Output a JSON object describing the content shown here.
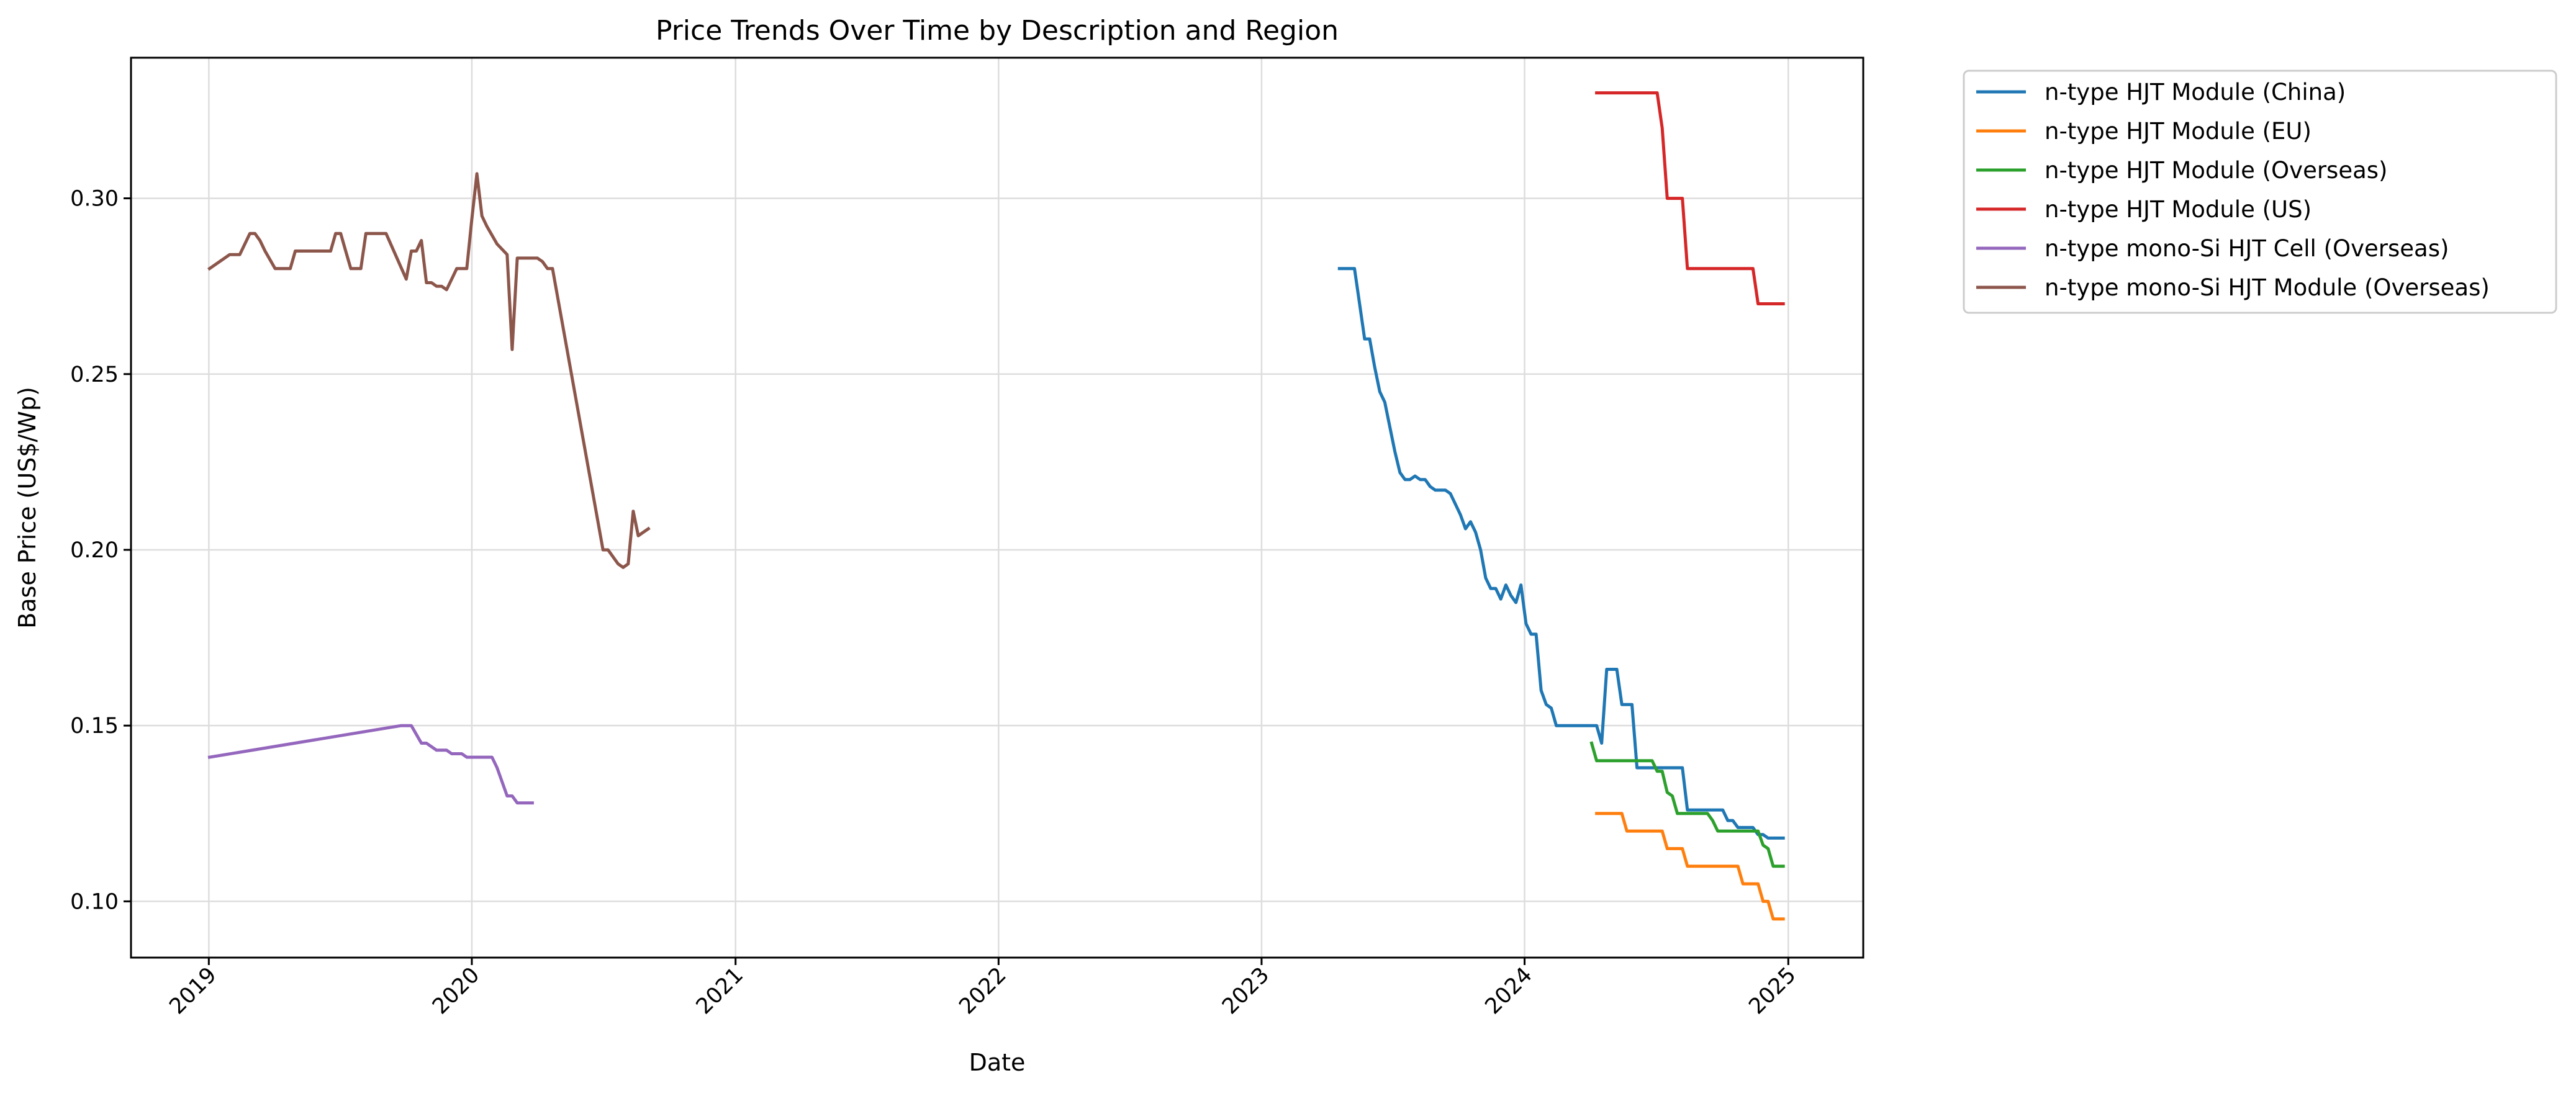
{
  "chart_data": {
    "type": "line",
    "title": "Price Trends Over Time by Description and Region",
    "xlabel": "Date",
    "ylabel": "Base Price (US$/Wp)",
    "xlim": [
      "2018-09-15",
      "2025-04-15"
    ],
    "ylim": [
      0.084,
      0.34
    ],
    "x_ticks": [
      "2019-01-01",
      "2020-01-01",
      "2021-01-01",
      "2022-01-01",
      "2023-01-01",
      "2024-01-01",
      "2025-01-01"
    ],
    "x_tick_labels": [
      "2019",
      "2020",
      "2021",
      "2022",
      "2023",
      "2024",
      "2025"
    ],
    "y_ticks": [
      0.1,
      0.15,
      0.2,
      0.25,
      0.3
    ],
    "y_tick_labels": [
      "0.10",
      "0.15",
      "0.20",
      "0.25",
      "0.30"
    ],
    "grid": true,
    "legend_position": "outside-right",
    "series": [
      {
        "name": "n-type HJT Module (China)",
        "color": "#1f77b4",
        "x": [
          "2023-04-19",
          "2023-05-10",
          "2023-05-17",
          "2023-05-24",
          "2023-05-31",
          "2023-06-07",
          "2023-06-14",
          "2023-06-21",
          "2023-06-28",
          "2023-07-05",
          "2023-07-12",
          "2023-07-19",
          "2023-07-26",
          "2023-08-02",
          "2023-08-09",
          "2023-08-16",
          "2023-08-23",
          "2023-08-30",
          "2023-09-06",
          "2023-09-13",
          "2023-09-20",
          "2023-09-27",
          "2023-10-04",
          "2023-10-11",
          "2023-10-18",
          "2023-10-25",
          "2023-11-01",
          "2023-11-08",
          "2023-11-15",
          "2023-11-22",
          "2023-11-29",
          "2023-12-06",
          "2023-12-13",
          "2023-12-20",
          "2023-12-27",
          "2024-01-03",
          "2024-01-10",
          "2024-01-17",
          "2024-01-24",
          "2024-01-31",
          "2024-02-07",
          "2024-02-14",
          "2024-02-21",
          "2024-02-28",
          "2024-03-06",
          "2024-03-13",
          "2024-03-20",
          "2024-03-27",
          "2024-04-03",
          "2024-04-10",
          "2024-04-17",
          "2024-04-24",
          "2024-05-01",
          "2024-05-08",
          "2024-05-15",
          "2024-05-22",
          "2024-05-29",
          "2024-06-05",
          "2024-06-12",
          "2024-06-19",
          "2024-06-26",
          "2024-07-03",
          "2024-07-10",
          "2024-07-17",
          "2024-07-24",
          "2024-07-31",
          "2024-08-07",
          "2024-08-14",
          "2024-08-21",
          "2024-08-28",
          "2024-09-04",
          "2024-09-11",
          "2024-09-18",
          "2024-09-25",
          "2024-10-02",
          "2024-10-09",
          "2024-10-16",
          "2024-10-23",
          "2024-10-30",
          "2024-11-06",
          "2024-11-13",
          "2024-11-20",
          "2024-11-27",
          "2024-12-04",
          "2024-12-11",
          "2024-12-18",
          "2024-12-25"
        ],
        "y": [
          0.28,
          0.28,
          0.27,
          0.26,
          0.26,
          0.252,
          0.245,
          0.242,
          0.235,
          0.228,
          0.222,
          0.22,
          0.22,
          0.221,
          0.22,
          0.22,
          0.218,
          0.217,
          0.217,
          0.217,
          0.216,
          0.213,
          0.21,
          0.206,
          0.208,
          0.205,
          0.2,
          0.192,
          0.189,
          0.189,
          0.186,
          0.19,
          0.187,
          0.185,
          0.19,
          0.179,
          0.176,
          0.176,
          0.16,
          0.156,
          0.155,
          0.15,
          0.15,
          0.15,
          0.15,
          0.15,
          0.15,
          0.15,
          0.15,
          0.15,
          0.145,
          0.166,
          0.166,
          0.166,
          0.156,
          0.156,
          0.156,
          0.138,
          0.138,
          0.138,
          0.138,
          0.138,
          0.138,
          0.138,
          0.138,
          0.138,
          0.138,
          0.126,
          0.126,
          0.126,
          0.126,
          0.126,
          0.126,
          0.126,
          0.126,
          0.123,
          0.123,
          0.121,
          0.121,
          0.121,
          0.121,
          0.119,
          0.119,
          0.118,
          0.118,
          0.118,
          0.118
        ]
      },
      {
        "name": "n-type HJT Module (EU)",
        "color": "#ff7f0e",
        "x": [
          "2024-04-10",
          "2024-04-17",
          "2024-04-24",
          "2024-05-01",
          "2024-05-08",
          "2024-05-15",
          "2024-05-22",
          "2024-05-29",
          "2024-06-05",
          "2024-06-12",
          "2024-06-19",
          "2024-06-26",
          "2024-07-03",
          "2024-07-10",
          "2024-07-17",
          "2024-07-24",
          "2024-07-31",
          "2024-08-07",
          "2024-08-14",
          "2024-08-21",
          "2024-08-28",
          "2024-09-04",
          "2024-09-11",
          "2024-09-18",
          "2024-09-25",
          "2024-10-02",
          "2024-10-09",
          "2024-10-16",
          "2024-10-23",
          "2024-10-30",
          "2024-11-06",
          "2024-11-13",
          "2024-11-20",
          "2024-11-27",
          "2024-12-04",
          "2024-12-11",
          "2024-12-18",
          "2024-12-25"
        ],
        "y": [
          0.125,
          0.125,
          0.125,
          0.125,
          0.125,
          0.125,
          0.12,
          0.12,
          0.12,
          0.12,
          0.12,
          0.12,
          0.12,
          0.12,
          0.115,
          0.115,
          0.115,
          0.115,
          0.11,
          0.11,
          0.11,
          0.11,
          0.11,
          0.11,
          0.11,
          0.11,
          0.11,
          0.11,
          0.11,
          0.105,
          0.105,
          0.105,
          0.105,
          0.1,
          0.1,
          0.095,
          0.095,
          0.095
        ]
      },
      {
        "name": "n-type HJT Module (Overseas)",
        "color": "#2ca02c",
        "x": [
          "2024-04-03",
          "2024-04-10",
          "2024-04-17",
          "2024-04-24",
          "2024-05-01",
          "2024-05-08",
          "2024-05-15",
          "2024-05-22",
          "2024-05-29",
          "2024-06-05",
          "2024-06-12",
          "2024-06-19",
          "2024-06-26",
          "2024-07-03",
          "2024-07-10",
          "2024-07-17",
          "2024-07-24",
          "2024-07-31",
          "2024-08-07",
          "2024-08-14",
          "2024-08-21",
          "2024-08-28",
          "2024-09-04",
          "2024-09-11",
          "2024-09-18",
          "2024-09-25",
          "2024-10-02",
          "2024-10-09",
          "2024-10-16",
          "2024-10-23",
          "2024-10-30",
          "2024-11-06",
          "2024-11-13",
          "2024-11-20",
          "2024-11-27",
          "2024-12-04",
          "2024-12-11",
          "2024-12-18",
          "2024-12-25"
        ],
        "y": [
          0.145,
          0.14,
          0.14,
          0.14,
          0.14,
          0.14,
          0.14,
          0.14,
          0.14,
          0.14,
          0.14,
          0.14,
          0.14,
          0.137,
          0.137,
          0.131,
          0.13,
          0.125,
          0.125,
          0.125,
          0.125,
          0.125,
          0.125,
          0.125,
          0.123,
          0.12,
          0.12,
          0.12,
          0.12,
          0.12,
          0.12,
          0.12,
          0.12,
          0.12,
          0.116,
          0.115,
          0.11,
          0.11,
          0.11
        ]
      },
      {
        "name": "n-type HJT Module (US)",
        "color": "#d62728",
        "x": [
          "2024-04-10",
          "2024-04-17",
          "2024-04-24",
          "2024-05-01",
          "2024-05-08",
          "2024-05-15",
          "2024-05-22",
          "2024-05-29",
          "2024-06-05",
          "2024-06-12",
          "2024-06-19",
          "2024-06-26",
          "2024-07-03",
          "2024-07-10",
          "2024-07-17",
          "2024-07-24",
          "2024-07-31",
          "2024-08-07",
          "2024-08-14",
          "2024-08-21",
          "2024-08-28",
          "2024-09-04",
          "2024-09-11",
          "2024-09-18",
          "2024-09-25",
          "2024-10-02",
          "2024-10-09",
          "2024-10-16",
          "2024-10-23",
          "2024-10-30",
          "2024-11-06",
          "2024-11-13",
          "2024-11-20",
          "2024-11-27",
          "2024-12-04",
          "2024-12-11",
          "2024-12-18",
          "2024-12-25"
        ],
        "y": [
          0.33,
          0.33,
          0.33,
          0.33,
          0.33,
          0.33,
          0.33,
          0.33,
          0.33,
          0.33,
          0.33,
          0.33,
          0.33,
          0.32,
          0.3,
          0.3,
          0.3,
          0.3,
          0.28,
          0.28,
          0.28,
          0.28,
          0.28,
          0.28,
          0.28,
          0.28,
          0.28,
          0.28,
          0.28,
          0.28,
          0.28,
          0.28,
          0.27,
          0.27,
          0.27,
          0.27,
          0.27,
          0.27
        ]
      },
      {
        "name": "n-type mono-Si HJT Cell (Overseas)",
        "color": "#9467bd",
        "x": [
          "2019-01-02",
          "2019-09-25",
          "2019-10-09",
          "2019-10-23",
          "2019-10-30",
          "2019-11-06",
          "2019-11-13",
          "2019-11-20",
          "2019-11-27",
          "2019-12-04",
          "2019-12-11",
          "2019-12-18",
          "2019-12-25",
          "2020-01-01",
          "2020-01-08",
          "2020-01-15",
          "2020-01-22",
          "2020-01-29",
          "2020-02-05",
          "2020-02-12",
          "2020-02-19",
          "2020-02-26",
          "2020-03-04",
          "2020-03-11",
          "2020-03-18",
          "2020-03-25"
        ],
        "y": [
          0.141,
          0.15,
          0.15,
          0.145,
          0.145,
          0.144,
          0.143,
          0.143,
          0.143,
          0.142,
          0.142,
          0.142,
          0.141,
          0.141,
          0.141,
          0.141,
          0.141,
          0.141,
          0.138,
          0.134,
          0.13,
          0.13,
          0.128,
          0.128,
          0.128,
          0.128
        ]
      },
      {
        "name": "n-type mono-Si HJT Module (Overseas)",
        "color": "#8c564b",
        "x": [
          "2019-01-02",
          "2019-01-30",
          "2019-02-13",
          "2019-02-27",
          "2019-03-06",
          "2019-03-13",
          "2019-03-20",
          "2019-04-03",
          "2019-04-10",
          "2019-04-24",
          "2019-05-01",
          "2019-05-08",
          "2019-05-22",
          "2019-06-12",
          "2019-06-19",
          "2019-06-26",
          "2019-07-03",
          "2019-07-10",
          "2019-07-17",
          "2019-07-24",
          "2019-07-31",
          "2019-08-07",
          "2019-08-14",
          "2019-08-21",
          "2019-09-04",
          "2019-10-02",
          "2019-10-09",
          "2019-10-16",
          "2019-10-23",
          "2019-10-30",
          "2019-11-06",
          "2019-11-13",
          "2019-11-20",
          "2019-11-27",
          "2019-12-04",
          "2019-12-11",
          "2019-12-18",
          "2019-12-25",
          "2020-01-01",
          "2020-01-08",
          "2020-01-15",
          "2020-01-22",
          "2020-02-05",
          "2020-02-19",
          "2020-02-26",
          "2020-03-04",
          "2020-03-11",
          "2020-04-01",
          "2020-04-08",
          "2020-04-15",
          "2020-04-22",
          "2020-07-01",
          "2020-07-08",
          "2020-07-15",
          "2020-07-22",
          "2020-07-29",
          "2020-08-05",
          "2020-08-12",
          "2020-08-19",
          "2020-08-26",
          "2020-09-02"
        ],
        "y": [
          0.28,
          0.284,
          0.284,
          0.29,
          0.29,
          0.288,
          0.285,
          0.28,
          0.28,
          0.28,
          0.285,
          0.285,
          0.285,
          0.285,
          0.285,
          0.29,
          0.29,
          0.285,
          0.28,
          0.28,
          0.28,
          0.29,
          0.29,
          0.29,
          0.29,
          0.277,
          0.285,
          0.285,
          0.288,
          0.276,
          0.276,
          0.275,
          0.275,
          0.274,
          0.277,
          0.28,
          0.28,
          0.28,
          0.294,
          0.307,
          0.295,
          0.292,
          0.287,
          0.284,
          0.257,
          0.283,
          0.283,
          0.283,
          0.282,
          0.28,
          0.28,
          0.2,
          0.2,
          0.198,
          0.196,
          0.195,
          0.196,
          0.211,
          0.204,
          0.205,
          0.206
        ]
      }
    ]
  }
}
